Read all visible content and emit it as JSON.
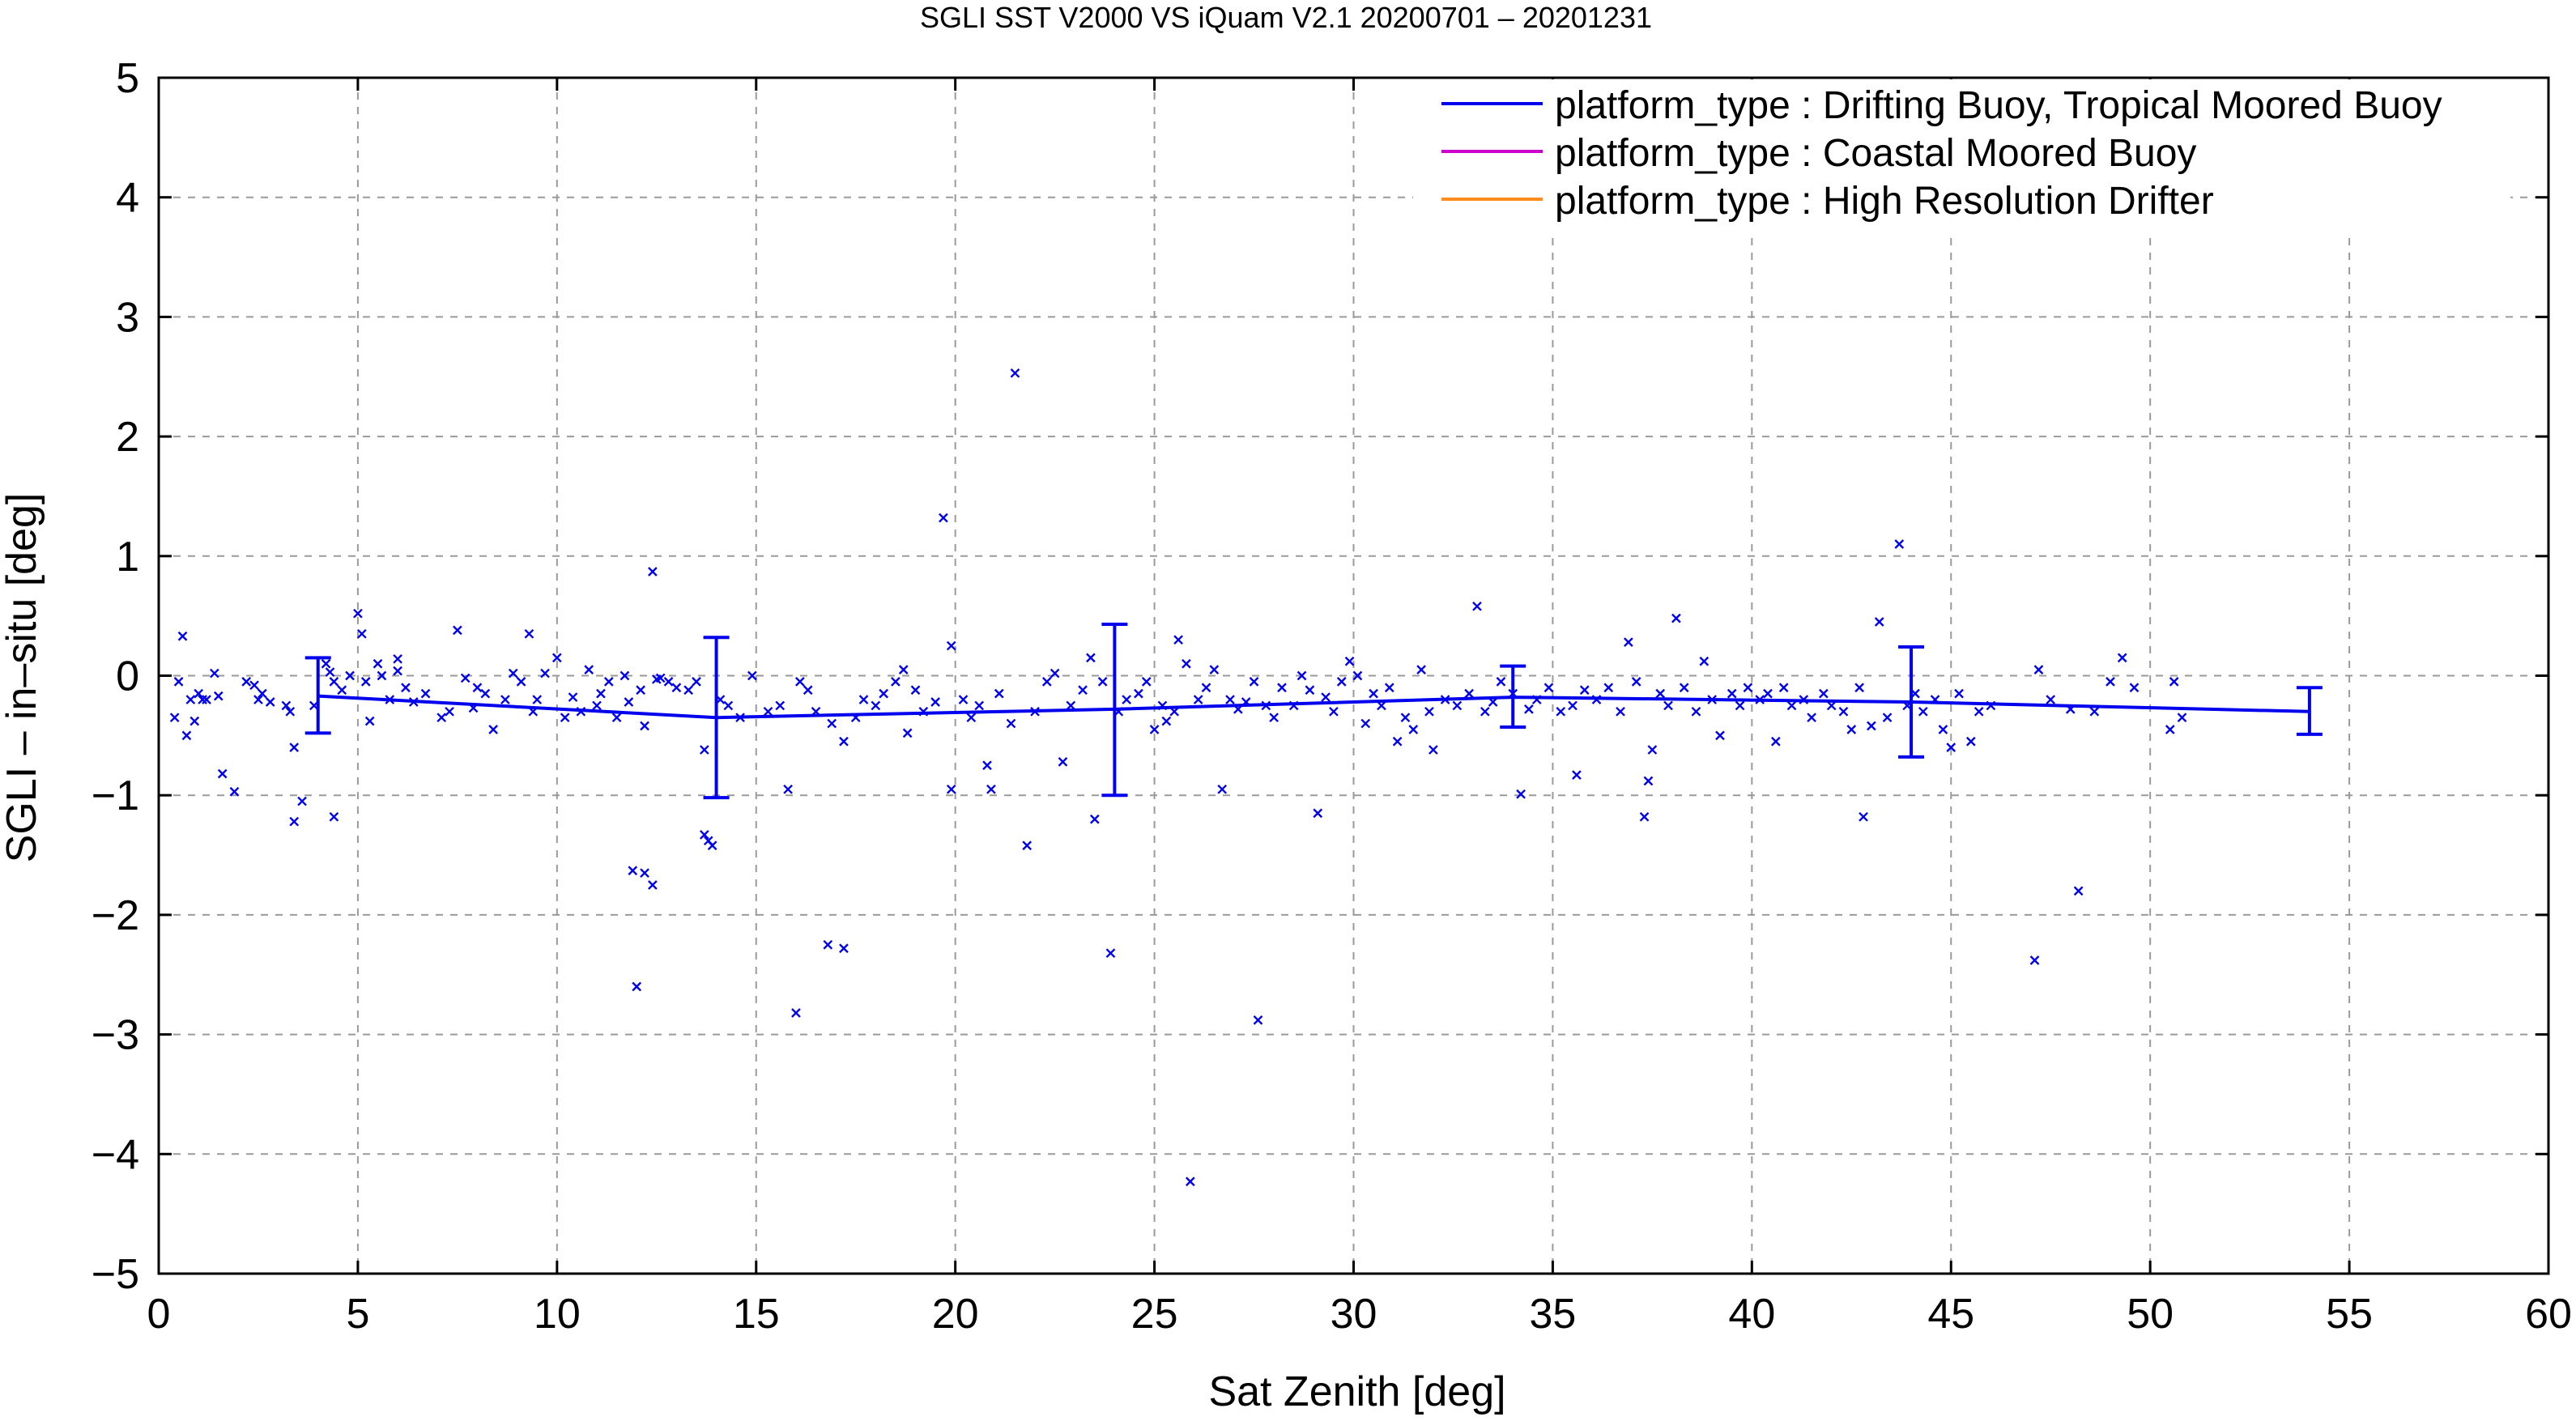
{
  "chart_data": {
    "type": "scatter",
    "title": "SGLI SST V2000 VS iQuam V2.1 20200701 – 20201231",
    "xlabel": "Sat Zenith [deg]",
    "ylabel": "SGLI – in–situ [deg]",
    "xlim": [
      0,
      60
    ],
    "ylim": [
      -5,
      5
    ],
    "x_ticks": [
      0,
      5,
      10,
      15,
      20,
      25,
      30,
      35,
      40,
      45,
      50,
      55,
      60
    ],
    "y_ticks": [
      5,
      4,
      3,
      2,
      1,
      0,
      -1,
      -2,
      -3,
      -4,
      -5
    ],
    "y_tick_labels": [
      "5",
      "4",
      "3",
      "2",
      "1",
      "0",
      "−1",
      "−2",
      "−3",
      "−4",
      "−5"
    ],
    "grid": true,
    "grid_style": "dashed",
    "legend_position": "top-right",
    "legend": [
      {
        "label": "platform_type : Drifting Buoy, Tropical Moored Buoy",
        "color": "#0000ee"
      },
      {
        "label": "platform_type : Coastal Moored Buoy",
        "color": "#cc00cc"
      },
      {
        "label": "platform_type : High Resolution Drifter",
        "color": "#ff8c1a"
      }
    ],
    "series": [
      {
        "name": "platform_type : Drifting Buoy, Tropical Moored Buoy",
        "color": "#0000ee",
        "points": [
          [
            0.4,
            -0.35
          ],
          [
            0.5,
            -0.05
          ],
          [
            0.6,
            0.33
          ],
          [
            0.7,
            -0.5
          ],
          [
            0.8,
            -0.2
          ],
          [
            0.9,
            -0.38
          ],
          [
            1.0,
            -0.15
          ],
          [
            1.1,
            -0.2
          ],
          [
            1.2,
            -0.2
          ],
          [
            1.4,
            0.02
          ],
          [
            1.5,
            -0.17
          ],
          [
            1.6,
            -0.82
          ],
          [
            1.9,
            -0.97
          ],
          [
            2.2,
            -0.05
          ],
          [
            2.4,
            -0.08
          ],
          [
            2.5,
            -0.2
          ],
          [
            2.6,
            -0.15
          ],
          [
            2.8,
            -0.22
          ],
          [
            3.2,
            -0.25
          ],
          [
            3.3,
            -0.3
          ],
          [
            3.4,
            -0.6
          ],
          [
            3.4,
            -1.22
          ],
          [
            3.6,
            -1.05
          ],
          [
            3.9,
            -0.25
          ],
          [
            4.2,
            0.1
          ],
          [
            4.3,
            0.03
          ],
          [
            4.4,
            -0.05
          ],
          [
            4.4,
            -1.18
          ],
          [
            4.6,
            -0.12
          ],
          [
            4.8,
            0.0
          ],
          [
            5.0,
            0.52
          ],
          [
            5.1,
            0.35
          ],
          [
            5.2,
            -0.05
          ],
          [
            5.3,
            -0.38
          ],
          [
            5.5,
            0.1
          ],
          [
            5.6,
            0.0
          ],
          [
            5.8,
            -0.2
          ],
          [
            6.0,
            0.14
          ],
          [
            6.0,
            0.04
          ],
          [
            6.2,
            -0.1
          ],
          [
            6.4,
            -0.22
          ],
          [
            6.7,
            -0.15
          ],
          [
            7.1,
            -0.35
          ],
          [
            7.3,
            -0.3
          ],
          [
            7.5,
            0.38
          ],
          [
            7.7,
            -0.02
          ],
          [
            7.9,
            -0.27
          ],
          [
            8.0,
            -0.1
          ],
          [
            8.2,
            -0.15
          ],
          [
            8.4,
            -0.45
          ],
          [
            8.7,
            -0.2
          ],
          [
            8.9,
            0.02
          ],
          [
            9.1,
            -0.05
          ],
          [
            9.3,
            0.35
          ],
          [
            9.4,
            -0.3
          ],
          [
            9.5,
            -0.2
          ],
          [
            9.7,
            0.02
          ],
          [
            10.0,
            0.15
          ],
          [
            10.2,
            -0.35
          ],
          [
            10.4,
            -0.18
          ],
          [
            10.6,
            -0.3
          ],
          [
            10.8,
            0.05
          ],
          [
            11.0,
            -0.25
          ],
          [
            11.1,
            -0.15
          ],
          [
            11.3,
            -0.05
          ],
          [
            11.5,
            -0.35
          ],
          [
            11.7,
            0.0
          ],
          [
            11.8,
            -0.22
          ],
          [
            11.9,
            -1.63
          ],
          [
            12.0,
            -2.6
          ],
          [
            12.1,
            -0.12
          ],
          [
            12.2,
            -0.42
          ],
          [
            12.2,
            -1.65
          ],
          [
            12.4,
            -1.75
          ],
          [
            12.4,
            0.87
          ],
          [
            12.5,
            -0.03
          ],
          [
            12.6,
            -0.02
          ],
          [
            12.8,
            -0.05
          ],
          [
            13.0,
            -0.1
          ],
          [
            13.3,
            -0.12
          ],
          [
            13.5,
            -0.05
          ],
          [
            13.7,
            -0.62
          ],
          [
            13.7,
            -1.33
          ],
          [
            13.8,
            -1.38
          ],
          [
            13.9,
            -1.42
          ],
          [
            14.1,
            -0.2
          ],
          [
            14.3,
            -0.25
          ],
          [
            14.6,
            -0.35
          ],
          [
            14.9,
            0.0
          ],
          [
            15.3,
            -0.3
          ],
          [
            15.6,
            -0.25
          ],
          [
            15.8,
            -0.95
          ],
          [
            16.0,
            -2.82
          ],
          [
            16.1,
            -0.05
          ],
          [
            16.3,
            -0.12
          ],
          [
            16.5,
            -0.3
          ],
          [
            16.8,
            -2.25
          ],
          [
            16.9,
            -0.4
          ],
          [
            17.2,
            -0.55
          ],
          [
            17.2,
            -2.28
          ],
          [
            17.5,
            -0.35
          ],
          [
            17.7,
            -0.2
          ],
          [
            18.0,
            -0.25
          ],
          [
            18.2,
            -0.15
          ],
          [
            18.5,
            -0.05
          ],
          [
            18.7,
            0.05
          ],
          [
            18.8,
            -0.48
          ],
          [
            19.0,
            -0.12
          ],
          [
            19.2,
            -0.3
          ],
          [
            19.5,
            -0.22
          ],
          [
            19.7,
            1.32
          ],
          [
            19.9,
            0.25
          ],
          [
            19.9,
            -0.95
          ],
          [
            20.2,
            -0.2
          ],
          [
            20.4,
            -0.35
          ],
          [
            20.6,
            -0.25
          ],
          [
            20.8,
            -0.75
          ],
          [
            20.9,
            -0.95
          ],
          [
            21.1,
            -0.15
          ],
          [
            21.4,
            -0.4
          ],
          [
            21.5,
            2.53
          ],
          [
            21.8,
            -1.42
          ],
          [
            22.0,
            -0.3
          ],
          [
            22.3,
            -0.05
          ],
          [
            22.5,
            0.02
          ],
          [
            22.7,
            -0.72
          ],
          [
            22.9,
            -0.25
          ],
          [
            23.2,
            -0.12
          ],
          [
            23.4,
            0.15
          ],
          [
            23.5,
            -1.2
          ],
          [
            23.7,
            -0.05
          ],
          [
            23.9,
            -2.32
          ],
          [
            24.1,
            -0.3
          ],
          [
            24.3,
            -0.2
          ],
          [
            24.6,
            -0.15
          ],
          [
            24.8,
            -0.05
          ],
          [
            25.0,
            -0.45
          ],
          [
            25.2,
            -0.25
          ],
          [
            25.3,
            -0.38
          ],
          [
            25.5,
            -0.3
          ],
          [
            25.6,
            0.3
          ],
          [
            25.8,
            0.1
          ],
          [
            25.9,
            -4.23
          ],
          [
            26.1,
            -0.2
          ],
          [
            26.3,
            -0.1
          ],
          [
            26.5,
            0.05
          ],
          [
            26.7,
            -0.95
          ],
          [
            26.9,
            -0.2
          ],
          [
            27.1,
            -0.28
          ],
          [
            27.3,
            -0.22
          ],
          [
            27.5,
            -0.05
          ],
          [
            27.6,
            -2.88
          ],
          [
            27.8,
            -0.25
          ],
          [
            28.0,
            -0.35
          ],
          [
            28.2,
            -0.1
          ],
          [
            28.5,
            -0.25
          ],
          [
            28.7,
            0.0
          ],
          [
            28.9,
            -0.12
          ],
          [
            29.1,
            -1.15
          ],
          [
            29.3,
            -0.18
          ],
          [
            29.5,
            -0.3
          ],
          [
            29.7,
            -0.05
          ],
          [
            29.9,
            0.12
          ],
          [
            30.1,
            0.0
          ],
          [
            30.3,
            -0.4
          ],
          [
            30.5,
            -0.15
          ],
          [
            30.7,
            -0.25
          ],
          [
            30.9,
            -0.1
          ],
          [
            31.1,
            -0.55
          ],
          [
            31.3,
            -0.35
          ],
          [
            31.5,
            -0.45
          ],
          [
            31.7,
            0.05
          ],
          [
            31.9,
            -0.3
          ],
          [
            32.0,
            -0.62
          ],
          [
            32.3,
            -0.2
          ],
          [
            32.6,
            -0.25
          ],
          [
            32.9,
            -0.15
          ],
          [
            33.1,
            0.58
          ],
          [
            33.3,
            -0.3
          ],
          [
            33.5,
            -0.22
          ],
          [
            33.7,
            -0.05
          ],
          [
            34.0,
            -0.15
          ],
          [
            34.2,
            -0.99
          ],
          [
            34.4,
            -0.28
          ],
          [
            34.6,
            -0.2
          ],
          [
            34.9,
            -0.1
          ],
          [
            35.2,
            -0.3
          ],
          [
            35.5,
            -0.25
          ],
          [
            35.6,
            -0.83
          ],
          [
            35.8,
            -0.12
          ],
          [
            36.1,
            -0.2
          ],
          [
            36.4,
            -0.1
          ],
          [
            36.7,
            -0.3
          ],
          [
            36.9,
            0.28
          ],
          [
            37.1,
            -0.05
          ],
          [
            37.3,
            -1.18
          ],
          [
            37.4,
            -0.88
          ],
          [
            37.5,
            -0.62
          ],
          [
            37.7,
            -0.15
          ],
          [
            37.9,
            -0.25
          ],
          [
            38.1,
            0.48
          ],
          [
            38.3,
            -0.1
          ],
          [
            38.6,
            -0.3
          ],
          [
            38.8,
            0.12
          ],
          [
            39.0,
            -0.2
          ],
          [
            39.2,
            -0.5
          ],
          [
            39.5,
            -0.15
          ],
          [
            39.7,
            -0.25
          ],
          [
            39.9,
            -0.1
          ],
          [
            40.2,
            -0.2
          ],
          [
            40.4,
            -0.15
          ],
          [
            40.6,
            -0.55
          ],
          [
            40.8,
            -0.1
          ],
          [
            41.0,
            -0.25
          ],
          [
            41.3,
            -0.2
          ],
          [
            41.5,
            -0.35
          ],
          [
            41.8,
            -0.15
          ],
          [
            42.0,
            -0.25
          ],
          [
            42.3,
            -0.3
          ],
          [
            42.5,
            -0.45
          ],
          [
            42.7,
            -0.1
          ],
          [
            42.8,
            -1.18
          ],
          [
            43.0,
            -0.42
          ],
          [
            43.2,
            0.45
          ],
          [
            43.4,
            -0.35
          ],
          [
            43.7,
            1.1
          ],
          [
            43.9,
            -0.25
          ],
          [
            44.1,
            -0.15
          ],
          [
            44.3,
            -0.3
          ],
          [
            44.6,
            -0.2
          ],
          [
            44.8,
            -0.45
          ],
          [
            45.0,
            -0.6
          ],
          [
            45.2,
            -0.15
          ],
          [
            45.5,
            -0.55
          ],
          [
            45.7,
            -0.3
          ],
          [
            46.0,
            -0.25
          ],
          [
            47.1,
            -2.38
          ],
          [
            47.2,
            0.05
          ],
          [
            47.5,
            -0.2
          ],
          [
            48.0,
            -0.28
          ],
          [
            48.2,
            -1.8
          ],
          [
            48.6,
            -0.3
          ],
          [
            49.0,
            -0.05
          ],
          [
            49.3,
            0.15
          ],
          [
            49.6,
            -0.1
          ],
          [
            50.5,
            -0.45
          ],
          [
            50.6,
            -0.05
          ],
          [
            50.8,
            -0.35
          ]
        ]
      }
    ],
    "mean_line": {
      "name": "platform_type : Drifting Buoy, Tropical Moored Buoy",
      "color": "#0000ee",
      "points": [
        {
          "x": 4,
          "y": -0.17,
          "lo": -0.48,
          "hi": 0.15
        },
        {
          "x": 14,
          "y": -0.35,
          "lo": -1.02,
          "hi": 0.32
        },
        {
          "x": 24,
          "y": -0.28,
          "lo": -1.0,
          "hi": 0.43
        },
        {
          "x": 34,
          "y": -0.18,
          "lo": -0.43,
          "hi": 0.08
        },
        {
          "x": 44,
          "y": -0.22,
          "lo": -0.68,
          "hi": 0.24
        },
        {
          "x": 54,
          "y": -0.3,
          "lo": -0.49,
          "hi": -0.1
        }
      ]
    }
  }
}
